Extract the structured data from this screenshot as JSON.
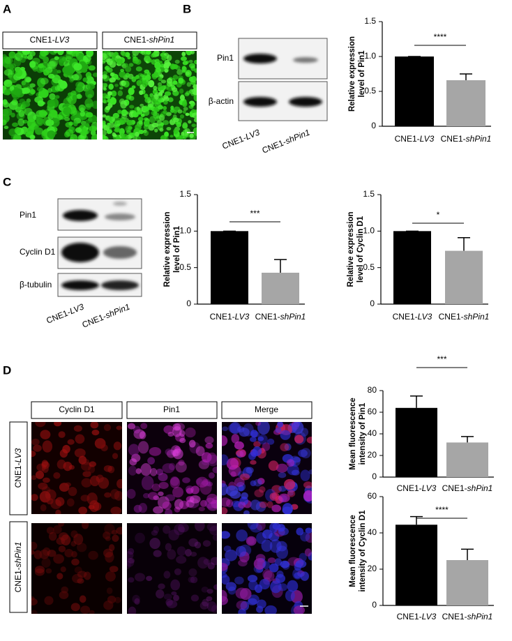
{
  "panels": {
    "A": {
      "label": "A",
      "headers": [
        "CNE1-LV3",
        "CNE1-shPin1"
      ]
    },
    "B": {
      "label": "B",
      "blot_labels": [
        "Pin1",
        "β-actin"
      ],
      "lanes": [
        "CNE1-LV3",
        "CNE1-shPin1"
      ]
    },
    "C": {
      "label": "C",
      "blot_labels": [
        "Pin1",
        "Cyclin D1",
        "β-tubulin"
      ],
      "lanes": [
        "CNE1-LV3",
        "CNE1-shPin1"
      ]
    },
    "D": {
      "label": "D",
      "columns": [
        "Cyclin D1",
        "Pin1",
        "Merge"
      ],
      "rows": [
        "CNE1-LV3",
        "CNE1-shPin1"
      ]
    }
  },
  "chart_data": [
    {
      "type": "bar",
      "ylabel": [
        "Relative expression",
        "level of Pin1"
      ],
      "categories": [
        "CNE1-LV3",
        "CNE1-shPin1"
      ],
      "values": [
        1.0,
        0.66
      ],
      "errors": [
        0,
        0.09
      ],
      "colors": [
        "#000000",
        "#a6a6a6"
      ],
      "significance": "****",
      "ylim": [
        0,
        1.5
      ],
      "yticks": [
        0,
        0.5,
        {
          "value": 1.0,
          "label": "1.0"
        },
        1.5
      ]
    },
    {
      "type": "bar",
      "ylabel": [
        "Relative expression",
        "level of Pin1"
      ],
      "categories": [
        "CNE1-LV3",
        "CNE1-shPin1"
      ],
      "values": [
        1.0,
        0.43
      ],
      "errors": [
        0,
        0.18
      ],
      "colors": [
        "#000000",
        "#a6a6a6"
      ],
      "significance": "***",
      "ylim": [
        0,
        1.5
      ],
      "yticks": [
        0,
        0.5,
        {
          "value": 1.0,
          "label": "1.0"
        },
        1.5
      ]
    },
    {
      "type": "bar",
      "ylabel": [
        "Relative expression",
        "level of Cyclin D1"
      ],
      "categories": [
        "CNE1-LV3",
        "CNE1-shPin1"
      ],
      "values": [
        1.0,
        0.73
      ],
      "errors": [
        0,
        0.18
      ],
      "colors": [
        "#000000",
        "#a6a6a6"
      ],
      "significance": "*",
      "ylim": [
        0,
        1.5
      ],
      "yticks": [
        0,
        0.5,
        {
          "value": 1.0,
          "label": "1.0"
        },
        1.5
      ]
    },
    {
      "type": "bar",
      "ylabel": [
        "Mean fluorescence",
        "intensity of Pin1"
      ],
      "categories": [
        "CNE1-LV3",
        "CNE1-shPin1"
      ],
      "values": [
        64,
        32
      ],
      "errors": [
        11,
        5.5
      ],
      "colors": [
        "#000000",
        "#a6a6a6"
      ],
      "significance": "***",
      "ylim": [
        0,
        80
      ],
      "yticks": [
        0,
        20,
        40,
        60,
        80
      ]
    },
    {
      "type": "bar",
      "ylabel": [
        "Mean fluorescence",
        "intensity of Cyclin D1"
      ],
      "categories": [
        "CNE1-LV3",
        "CNE1-shPin1"
      ],
      "values": [
        44.5,
        25
      ],
      "errors": [
        4.5,
        6
      ],
      "colors": [
        "#000000",
        "#a6a6a6"
      ],
      "significance": "****",
      "ylim": [
        0,
        60
      ],
      "yticks": [
        0,
        20,
        40,
        60
      ]
    }
  ]
}
